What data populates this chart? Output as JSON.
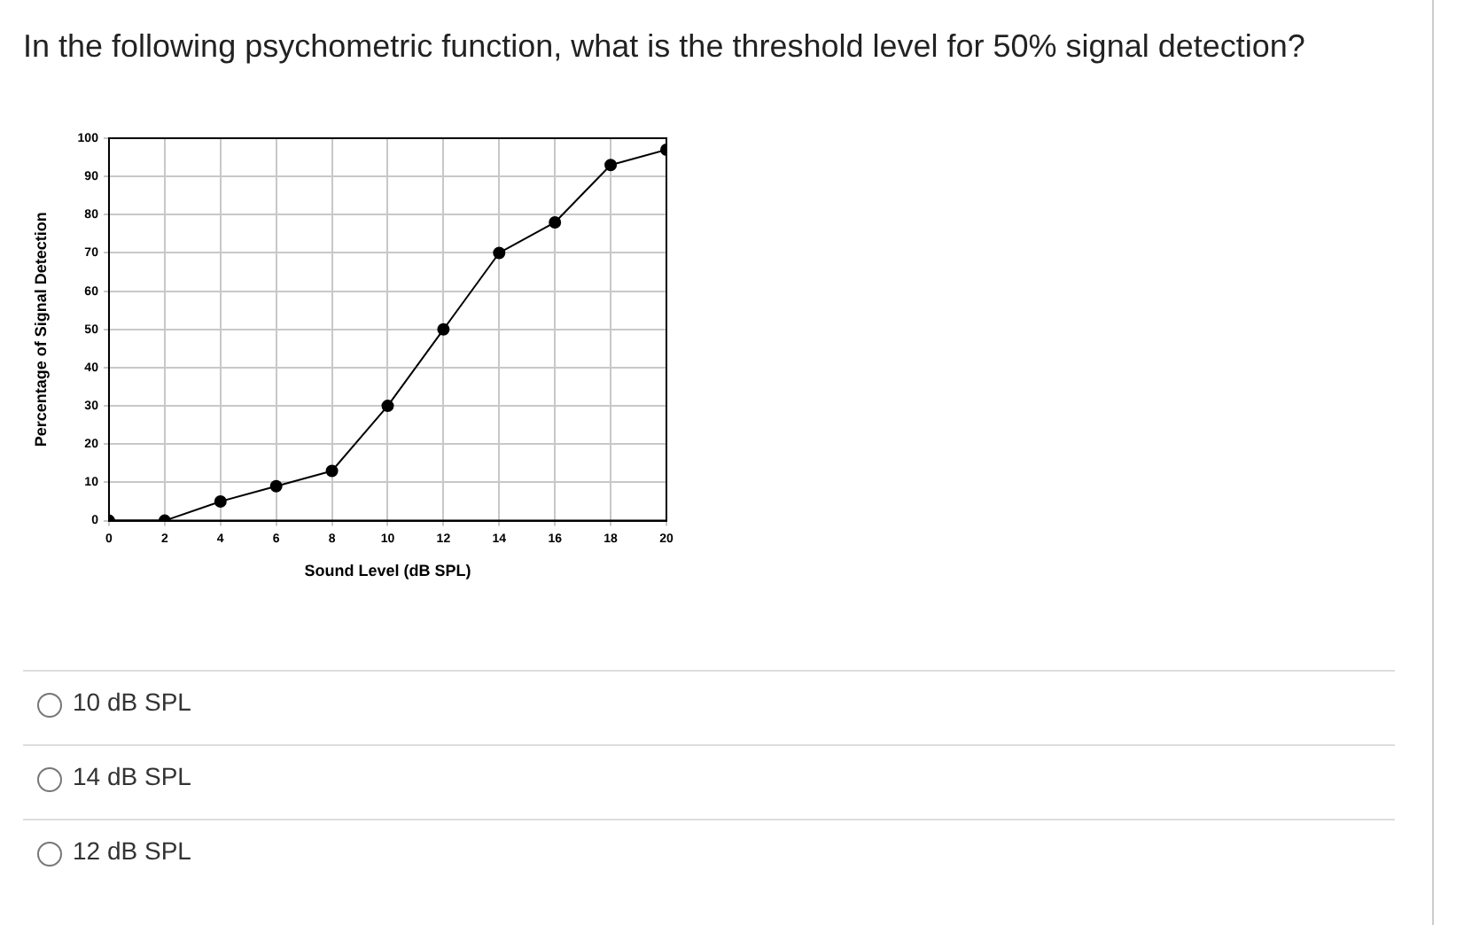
{
  "chart_data": {
    "type": "line",
    "title": "In the following psychometric function, what is the threshold level for 50% signal detection?",
    "xlabel": "Sound Level (dB SPL)",
    "ylabel": "Percentage of Signal Detection",
    "x": [
      0,
      2,
      4,
      6,
      8,
      10,
      12,
      14,
      16,
      18,
      20
    ],
    "values": [
      0,
      0,
      5,
      9,
      13,
      30,
      50,
      70,
      78,
      93,
      97
    ],
    "color": "#000000",
    "marker": "circle",
    "line_style": "solid",
    "xlim": [
      0,
      20
    ],
    "xticks": [
      0,
      2,
      4,
      6,
      8,
      10,
      12,
      14,
      16,
      18,
      20
    ],
    "ylim": [
      0,
      100
    ],
    "yticks": [
      0,
      10,
      20,
      30,
      40,
      50,
      60,
      70,
      80,
      90,
      100
    ],
    "grid": true,
    "legend": false,
    "annotations": [
      "10 dB SPL",
      "14 dB SPL",
      "12 dB SPL"
    ]
  }
}
